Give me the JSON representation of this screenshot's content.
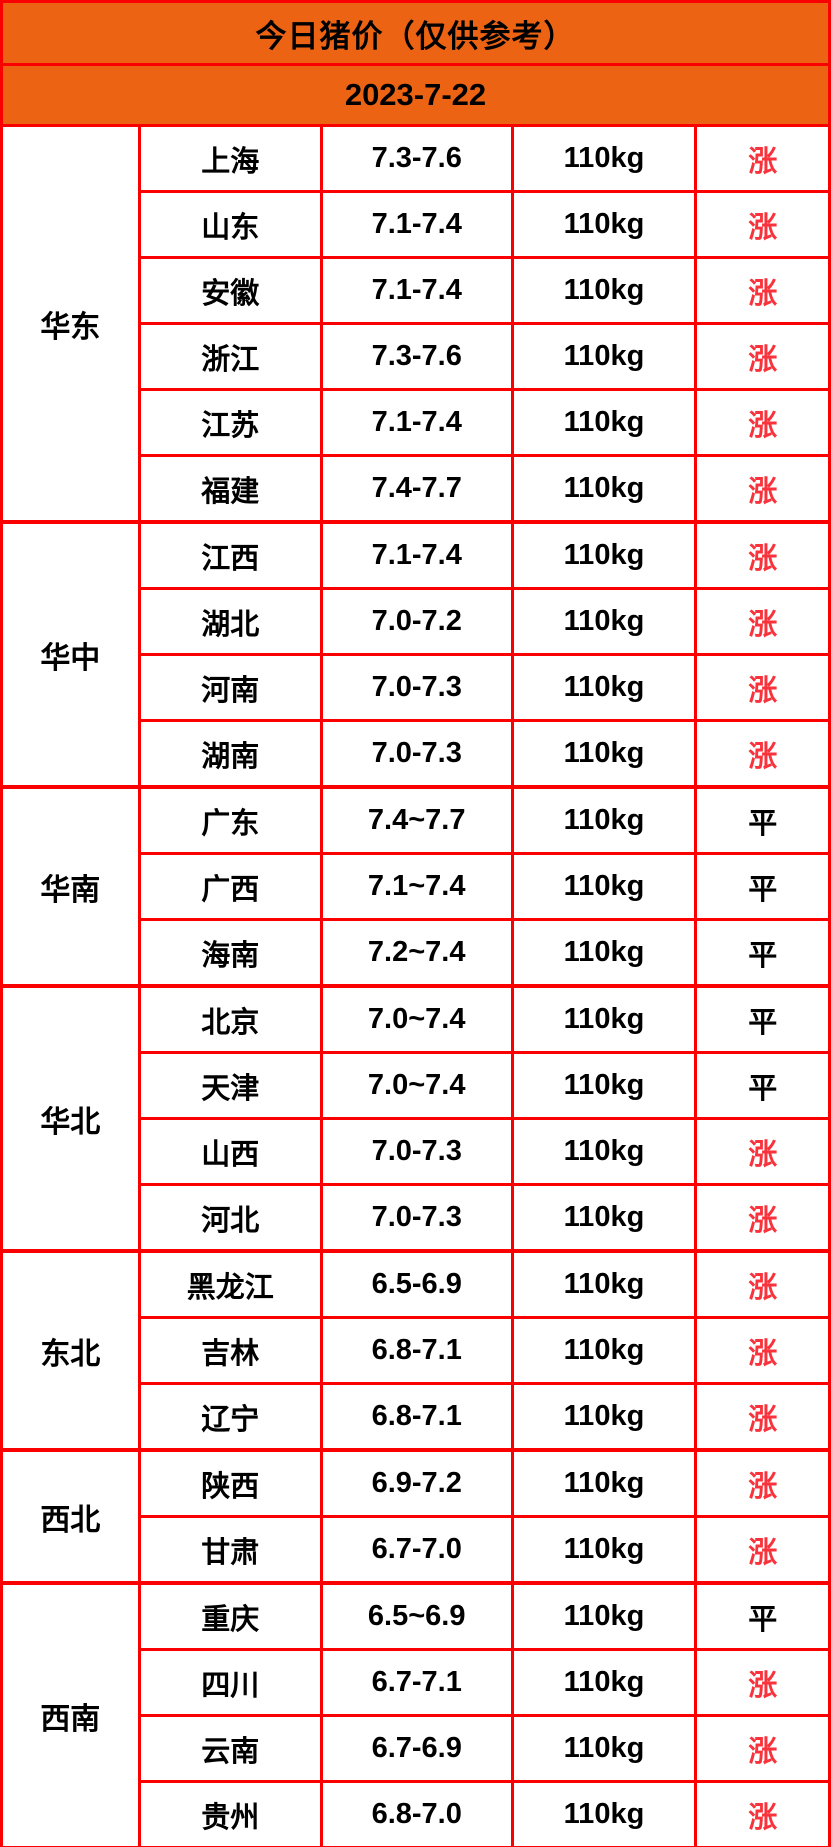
{
  "chart_data": {
    "type": "table",
    "title": "今日猪价（仅供参考）",
    "date": "2023-7-22",
    "legend": {
      "up": "涨",
      "flat": "平"
    },
    "groups": [
      {
        "region": "华东",
        "rows": [
          {
            "province": "上海",
            "price": "7.3-7.6",
            "weight": "110kg",
            "trend": "涨",
            "trend_type": "up"
          },
          {
            "province": "山东",
            "price": "7.1-7.4",
            "weight": "110kg",
            "trend": "涨",
            "trend_type": "up"
          },
          {
            "province": "安徽",
            "price": "7.1-7.4",
            "weight": "110kg",
            "trend": "涨",
            "trend_type": "up"
          },
          {
            "province": "浙江",
            "price": "7.3-7.6",
            "weight": "110kg",
            "trend": "涨",
            "trend_type": "up"
          },
          {
            "province": "江苏",
            "price": "7.1-7.4",
            "weight": "110kg",
            "trend": "涨",
            "trend_type": "up"
          },
          {
            "province": "福建",
            "price": "7.4-7.7",
            "weight": "110kg",
            "trend": "涨",
            "trend_type": "up"
          }
        ]
      },
      {
        "region": "华中",
        "rows": [
          {
            "province": "江西",
            "price": "7.1-7.4",
            "weight": "110kg",
            "trend": "涨",
            "trend_type": "up"
          },
          {
            "province": "湖北",
            "price": "7.0-7.2",
            "weight": "110kg",
            "trend": "涨",
            "trend_type": "up"
          },
          {
            "province": "河南",
            "price": "7.0-7.3",
            "weight": "110kg",
            "trend": "涨",
            "trend_type": "up"
          },
          {
            "province": "湖南",
            "price": "7.0-7.3",
            "weight": "110kg",
            "trend": "涨",
            "trend_type": "up"
          }
        ]
      },
      {
        "region": "华南",
        "rows": [
          {
            "province": "广东",
            "price": "7.4~7.7",
            "weight": "110kg",
            "trend": "平",
            "trend_type": "flat"
          },
          {
            "province": "广西",
            "price": "7.1~7.4",
            "weight": "110kg",
            "trend": "平",
            "trend_type": "flat"
          },
          {
            "province": "海南",
            "price": "7.2~7.4",
            "weight": "110kg",
            "trend": "平",
            "trend_type": "flat"
          }
        ]
      },
      {
        "region": "华北",
        "rows": [
          {
            "province": "北京",
            "price": "7.0~7.4",
            "weight": "110kg",
            "trend": "平",
            "trend_type": "flat"
          },
          {
            "province": "天津",
            "price": "7.0~7.4",
            "weight": "110kg",
            "trend": "平",
            "trend_type": "flat"
          },
          {
            "province": "山西",
            "price": "7.0-7.3",
            "weight": "110kg",
            "trend": "涨",
            "trend_type": "up"
          },
          {
            "province": "河北",
            "price": "7.0-7.3",
            "weight": "110kg",
            "trend": "涨",
            "trend_type": "up"
          }
        ]
      },
      {
        "region": "东北",
        "rows": [
          {
            "province": "黑龙江",
            "price": "6.5-6.9",
            "weight": "110kg",
            "trend": "涨",
            "trend_type": "up"
          },
          {
            "province": "吉林",
            "price": "6.8-7.1",
            "weight": "110kg",
            "trend": "涨",
            "trend_type": "up"
          },
          {
            "province": "辽宁",
            "price": "6.8-7.1",
            "weight": "110kg",
            "trend": "涨",
            "trend_type": "up"
          }
        ]
      },
      {
        "region": "西北",
        "rows": [
          {
            "province": "陕西",
            "price": "6.9-7.2",
            "weight": "110kg",
            "trend": "涨",
            "trend_type": "up"
          },
          {
            "province": "甘肃",
            "price": "6.7-7.0",
            "weight": "110kg",
            "trend": "涨",
            "trend_type": "up"
          }
        ]
      },
      {
        "region": "西南",
        "rows": [
          {
            "province": "重庆",
            "price": "6.5~6.9",
            "weight": "110kg",
            "trend": "平",
            "trend_type": "flat"
          },
          {
            "province": "四川",
            "price": "6.7-7.1",
            "weight": "110kg",
            "trend": "涨",
            "trend_type": "up"
          },
          {
            "province": "云南",
            "price": "6.7-6.9",
            "weight": "110kg",
            "trend": "涨",
            "trend_type": "up"
          },
          {
            "province": "贵州",
            "price": "6.8-7.0",
            "weight": "110kg",
            "trend": "涨",
            "trend_type": "up"
          }
        ]
      }
    ]
  },
  "colors": {
    "header_bg": "#EC6313",
    "border": "#FA0000",
    "trend_up": "#F8333C",
    "text": "#000000",
    "cell_bg": "#FFFFFF"
  }
}
